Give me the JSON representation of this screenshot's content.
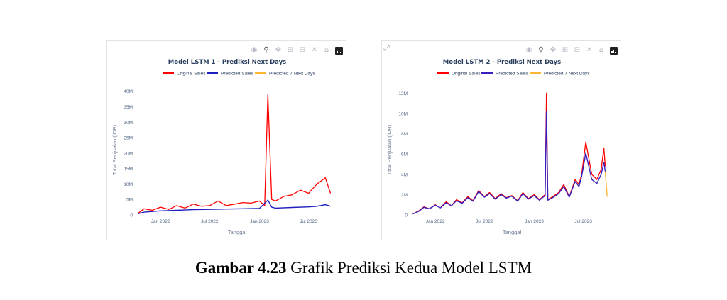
{
  "chart_data": [
    {
      "type": "line",
      "title": "Model LSTM 1 - Prediksi Next Days",
      "xlabel": "Tanggal",
      "ylabel": "Total Penjualan (IDR)",
      "ylim": [
        0,
        42000000
      ],
      "xlim": [
        "2021-10-01",
        "2023-10-20"
      ],
      "yticks": [
        0,
        5000000,
        10000000,
        15000000,
        20000000,
        25000000,
        30000000,
        35000000,
        40000000
      ],
      "yticklabels": [
        "0",
        "5M",
        "10M",
        "15M",
        "20M",
        "25M",
        "30M",
        "35M",
        "40M"
      ],
      "xticks": [
        "2022-01-01",
        "2022-07-01",
        "2023-01-01",
        "2023-07-01"
      ],
      "xticklabels": [
        "Jan 2022",
        "Jul 2022",
        "Jan 2023",
        "Jul 2023"
      ],
      "grid": false,
      "legend_position": "top",
      "series": [
        {
          "name": "Original Sales",
          "color": "#ff0000",
          "x": [
            "2021-10-10",
            "2021-11-01",
            "2021-12-01",
            "2022-01-01",
            "2022-02-01",
            "2022-03-01",
            "2022-04-01",
            "2022-05-01",
            "2022-06-01",
            "2022-07-01",
            "2022-08-01",
            "2022-09-01",
            "2022-10-01",
            "2022-11-01",
            "2022-12-01",
            "2023-01-01",
            "2023-01-20",
            "2023-02-01",
            "2023-02-15",
            "2023-03-01",
            "2023-04-01",
            "2023-05-01",
            "2023-06-01",
            "2023-07-01",
            "2023-08-01",
            "2023-09-01",
            "2023-09-20"
          ],
          "values": [
            500000,
            2000000,
            1500000,
            2500000,
            1800000,
            3000000,
            2200000,
            3500000,
            2800000,
            3000000,
            4500000,
            3000000,
            3500000,
            4000000,
            3800000,
            4500000,
            3000000,
            39000000,
            5000000,
            4500000,
            6000000,
            6500000,
            8000000,
            7000000,
            10000000,
            12000000,
            7000000
          ]
        },
        {
          "name": "Predicted Sales",
          "color": "#1f1fbf",
          "x": [
            "2021-10-10",
            "2021-11-01",
            "2021-12-01",
            "2022-01-01",
            "2022-03-01",
            "2022-05-01",
            "2022-07-01",
            "2022-09-01",
            "2022-11-01",
            "2023-01-01",
            "2023-02-01",
            "2023-02-15",
            "2023-03-01",
            "2023-05-01",
            "2023-07-01",
            "2023-08-01",
            "2023-09-01",
            "2023-09-20"
          ],
          "values": [
            400000,
            900000,
            1100000,
            1300000,
            1500000,
            1700000,
            1800000,
            1900000,
            2000000,
            2100000,
            4800000,
            2500000,
            2200000,
            2400000,
            2600000,
            2800000,
            3300000,
            2800000
          ]
        },
        {
          "name": "Predicted 7 Next Days",
          "color": "#ffb733",
          "x": [],
          "values": []
        }
      ]
    },
    {
      "type": "line",
      "title": "Model LSTM 2 - Prediksi Next Days",
      "xlabel": "Tanggal",
      "ylabel": "Total Penjualan (IDR)",
      "ylim": [
        0,
        12800000
      ],
      "xlim": [
        "2021-10-01",
        "2023-10-20"
      ],
      "yticks": [
        0,
        2000000,
        4000000,
        6000000,
        8000000,
        10000000,
        12000000
      ],
      "yticklabels": [
        "0",
        "2M",
        "4M",
        "6M",
        "8M",
        "10M",
        "12M"
      ],
      "xticks": [
        "2022-01-01",
        "2022-07-01",
        "2023-01-01",
        "2023-07-01"
      ],
      "xticklabels": [
        "Jan 2022",
        "Jul 2022",
        "Jan 2023",
        "Jul 2023"
      ],
      "grid": false,
      "legend_position": "top",
      "series": [
        {
          "name": "Original Sales",
          "color": "#ff0000",
          "x": [
            "2021-10-10",
            "2021-11-01",
            "2021-11-20",
            "2021-12-10",
            "2022-01-01",
            "2022-01-20",
            "2022-02-10",
            "2022-03-01",
            "2022-03-20",
            "2022-04-10",
            "2022-05-01",
            "2022-05-20",
            "2022-06-10",
            "2022-07-01",
            "2022-07-20",
            "2022-08-10",
            "2022-09-01",
            "2022-09-20",
            "2022-10-10",
            "2022-11-01",
            "2022-11-20",
            "2022-12-10",
            "2023-01-01",
            "2023-01-20",
            "2023-02-10",
            "2023-02-15",
            "2023-02-20",
            "2023-03-10",
            "2023-04-01",
            "2023-04-20",
            "2023-05-10",
            "2023-06-01",
            "2023-06-15",
            "2023-06-25",
            "2023-07-10",
            "2023-08-01",
            "2023-08-20",
            "2023-09-05",
            "2023-09-15",
            "2023-09-20"
          ],
          "values": [
            100000,
            400000,
            800000,
            600000,
            1000000,
            700000,
            1300000,
            900000,
            1500000,
            1200000,
            1800000,
            1400000,
            2400000,
            1800000,
            2200000,
            1600000,
            2100000,
            1700000,
            1900000,
            1400000,
            2200000,
            1600000,
            2000000,
            1500000,
            2000000,
            12000000,
            1500000,
            1800000,
            2200000,
            3000000,
            1800000,
            3500000,
            3000000,
            4000000,
            7200000,
            4000000,
            3500000,
            4500000,
            6600000,
            4800000
          ]
        },
        {
          "name": "Predicted Sales",
          "color": "#3a1fbf",
          "x": [
            "2021-10-10",
            "2021-11-01",
            "2021-11-20",
            "2021-12-10",
            "2022-01-01",
            "2022-01-20",
            "2022-02-10",
            "2022-03-01",
            "2022-03-20",
            "2022-04-10",
            "2022-05-01",
            "2022-05-20",
            "2022-06-10",
            "2022-07-01",
            "2022-07-20",
            "2022-08-10",
            "2022-09-01",
            "2022-09-20",
            "2022-10-10",
            "2022-11-01",
            "2022-11-20",
            "2022-12-10",
            "2023-01-01",
            "2023-01-20",
            "2023-02-10",
            "2023-02-15",
            "2023-02-20",
            "2023-03-10",
            "2023-04-01",
            "2023-04-20",
            "2023-05-10",
            "2023-06-01",
            "2023-06-15",
            "2023-06-25",
            "2023-07-10",
            "2023-08-01",
            "2023-08-20",
            "2023-09-05",
            "2023-09-15",
            "2023-09-20"
          ],
          "values": [
            100000,
            350000,
            750000,
            600000,
            950000,
            700000,
            1200000,
            900000,
            1400000,
            1150000,
            1700000,
            1350000,
            2300000,
            1750000,
            2100000,
            1550000,
            2000000,
            1650000,
            1850000,
            1350000,
            2100000,
            1550000,
            1900000,
            1450000,
            1900000,
            10200000,
            1450000,
            1700000,
            2100000,
            2800000,
            1750000,
            3300000,
            2800000,
            3800000,
            6100000,
            3500000,
            3100000,
            4000000,
            5200000,
            4300000
          ]
        },
        {
          "name": "Predicted 7 Next Days",
          "color": "#ffb733",
          "x": [
            "2023-09-20",
            "2023-09-27"
          ],
          "values": [
            4300000,
            1800000
          ]
        }
      ]
    }
  ],
  "caption": {
    "label": "Gambar 4.23",
    "text": " Grafik Prediksi Kedua Model LSTM"
  },
  "modebar": {
    "icons": [
      "camera-icon",
      "zoom-icon",
      "pan-icon",
      "zoom-in-icon",
      "zoom-out-icon",
      "autoscale-icon",
      "reset-axes-icon",
      "plotly-logo"
    ]
  }
}
